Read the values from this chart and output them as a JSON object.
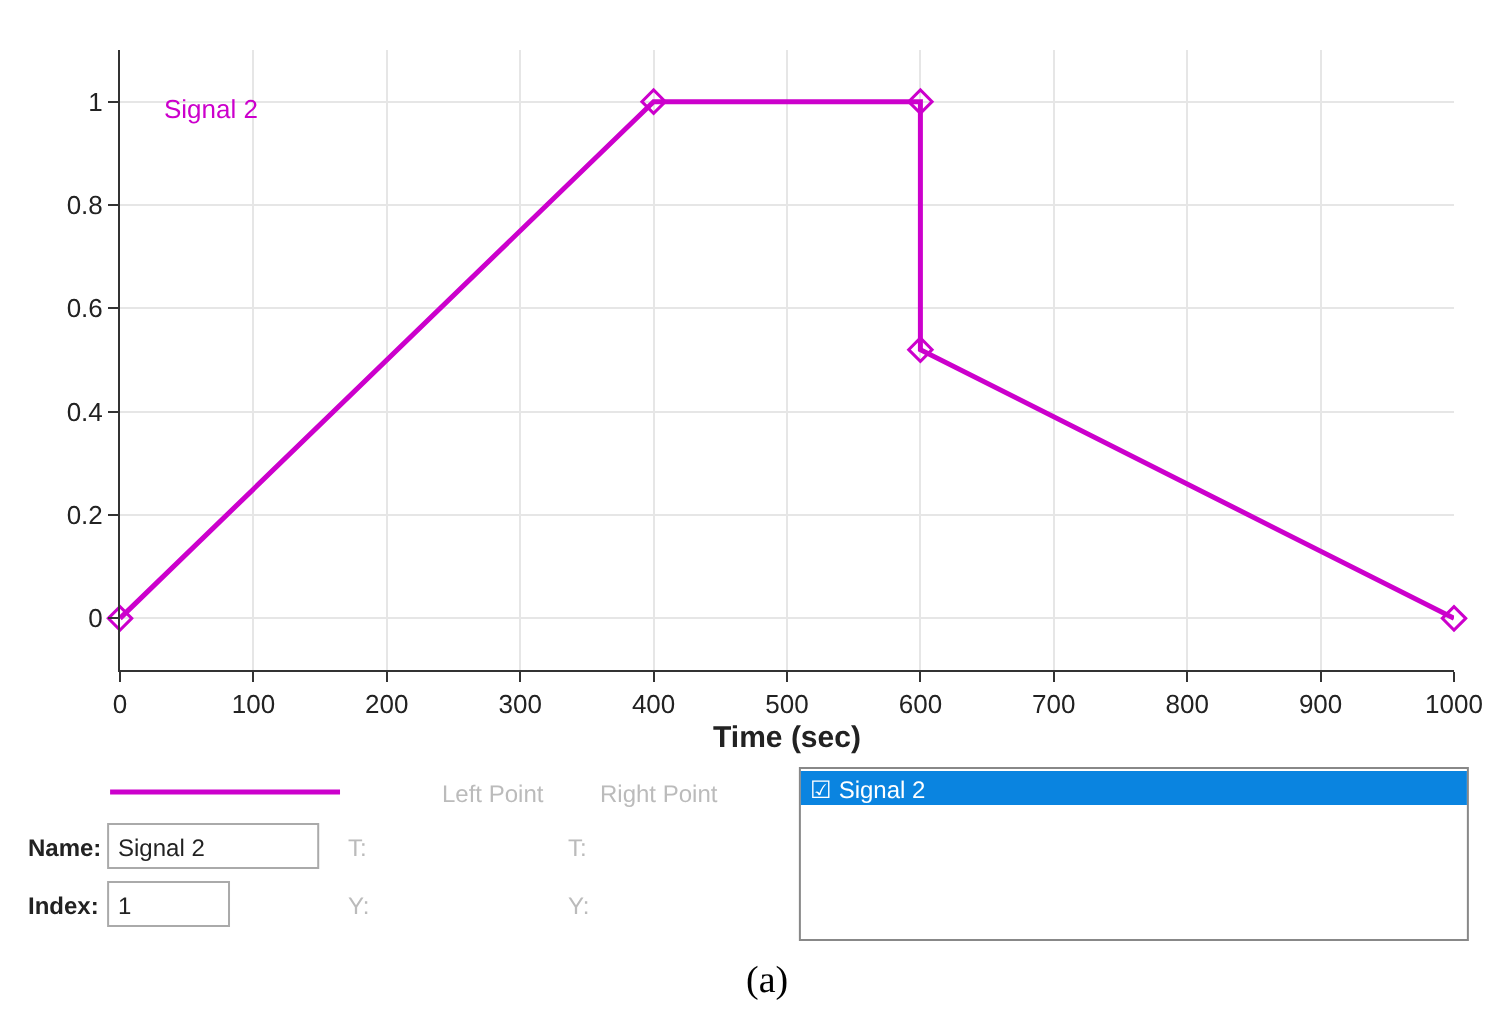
{
  "chart_data": {
    "type": "line",
    "xlabel": "Time (sec)",
    "x": [
      0,
      400,
      600,
      600,
      1000
    ],
    "series": [
      {
        "name": "Signal 2",
        "color": "#cc00cc",
        "values": [
          0,
          1,
          1,
          0.52,
          0
        ]
      }
    ],
    "xlim": [
      0,
      1000
    ],
    "xticks": [
      0,
      100,
      200,
      300,
      400,
      500,
      600,
      700,
      800,
      900,
      1000
    ],
    "ylim": [
      -0.1,
      1.1
    ],
    "yticks": [
      0,
      0.2,
      0.4,
      0.6,
      0.8,
      1
    ],
    "grid": true,
    "marker": "diamond",
    "line_style": "solid",
    "annotations": [
      "Left Point",
      "Right Point",
      "Name:",
      "Signal 2",
      "Index:",
      "1",
      "T:",
      "T:",
      "Y:",
      "Y:",
      "☑ Signal 2",
      "(a)"
    ]
  }
}
